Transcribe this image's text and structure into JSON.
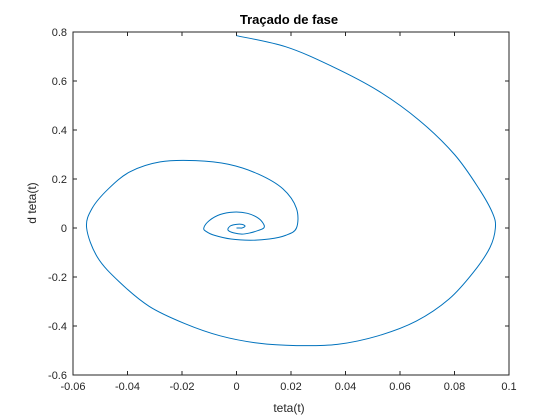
{
  "chart_data": {
    "type": "line",
    "title": "Traçado de fase",
    "xlabel": "teta(t)",
    "ylabel": "d teta(t)",
    "xlim": [
      -0.06,
      0.1
    ],
    "ylim": [
      -0.6,
      0.8
    ],
    "xticks": [
      "-0.06",
      "-0.04",
      "-0.02",
      "0",
      "0.02",
      "0.04",
      "0.06",
      "0.08",
      "0.1"
    ],
    "yticks": [
      "-0.6",
      "-0.4",
      "-0.2",
      "0",
      "0.2",
      "0.4",
      "0.6",
      "0.8"
    ],
    "grid": false,
    "line_color": "#0072BD",
    "axis_color": "#262626",
    "series": [
      {
        "x": [
          0.0,
          0.018,
          0.035,
          0.052,
          0.067,
          0.08,
          0.089,
          0.094,
          0.095,
          0.093,
          0.087,
          0.078,
          0.066,
          0.052,
          0.037,
          0.022,
          0.008,
          -0.006,
          -0.019,
          -0.032,
          -0.043,
          -0.051,
          -0.055,
          -0.053,
          -0.047,
          -0.039,
          -0.028,
          -0.015,
          -0.003,
          0.008,
          0.017,
          0.022,
          0.022,
          0.018,
          0.012,
          0.005,
          -0.002,
          -0.008,
          -0.011,
          -0.012,
          -0.01,
          -0.006,
          -0.001,
          0.004,
          0.008,
          0.01,
          0.01,
          0.008,
          0.005,
          0.002,
          -0.001,
          -0.003,
          -0.003,
          -0.002,
          0.0,
          0.002,
          0.003,
          0.003,
          0.002,
          0.001,
          0.0
        ],
        "y": [
          0.785,
          0.74,
          0.66,
          0.56,
          0.44,
          0.3,
          0.16,
          0.06,
          0.0,
          -0.08,
          -0.18,
          -0.29,
          -0.38,
          -0.44,
          -0.475,
          -0.48,
          -0.47,
          -0.44,
          -0.39,
          -0.32,
          -0.22,
          -0.12,
          0.0,
          0.08,
          0.16,
          0.23,
          0.27,
          0.275,
          0.26,
          0.22,
          0.16,
          0.08,
          0.0,
          -0.03,
          -0.045,
          -0.05,
          -0.045,
          -0.03,
          -0.015,
          0.0,
          0.03,
          0.055,
          0.065,
          0.06,
          0.04,
          0.015,
          0.0,
          -0.01,
          -0.02,
          -0.025,
          -0.02,
          -0.01,
          0.0,
          0.01,
          0.015,
          0.015,
          0.01,
          0.005,
          0.0,
          0.0,
          0.0
        ]
      }
    ]
  }
}
